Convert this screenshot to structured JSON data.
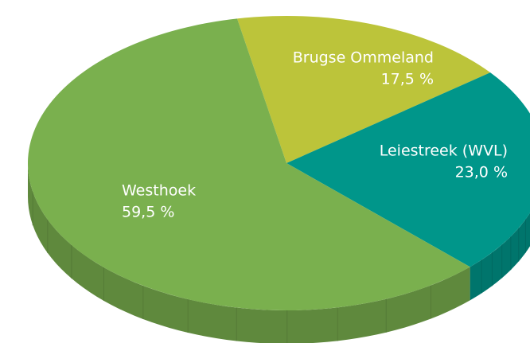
{
  "chart_data": {
    "type": "pie",
    "categories": [
      "Brugse Ommeland",
      "Leiestreek (WVL)",
      "Westhoek"
    ],
    "values": [
      17.5,
      23.0,
      59.5
    ],
    "value_labels": [
      "17,5 %",
      "23,0 %",
      "59,5 %"
    ],
    "colors": [
      "#bcc43a",
      "#00968a",
      "#7ab04e"
    ]
  }
}
